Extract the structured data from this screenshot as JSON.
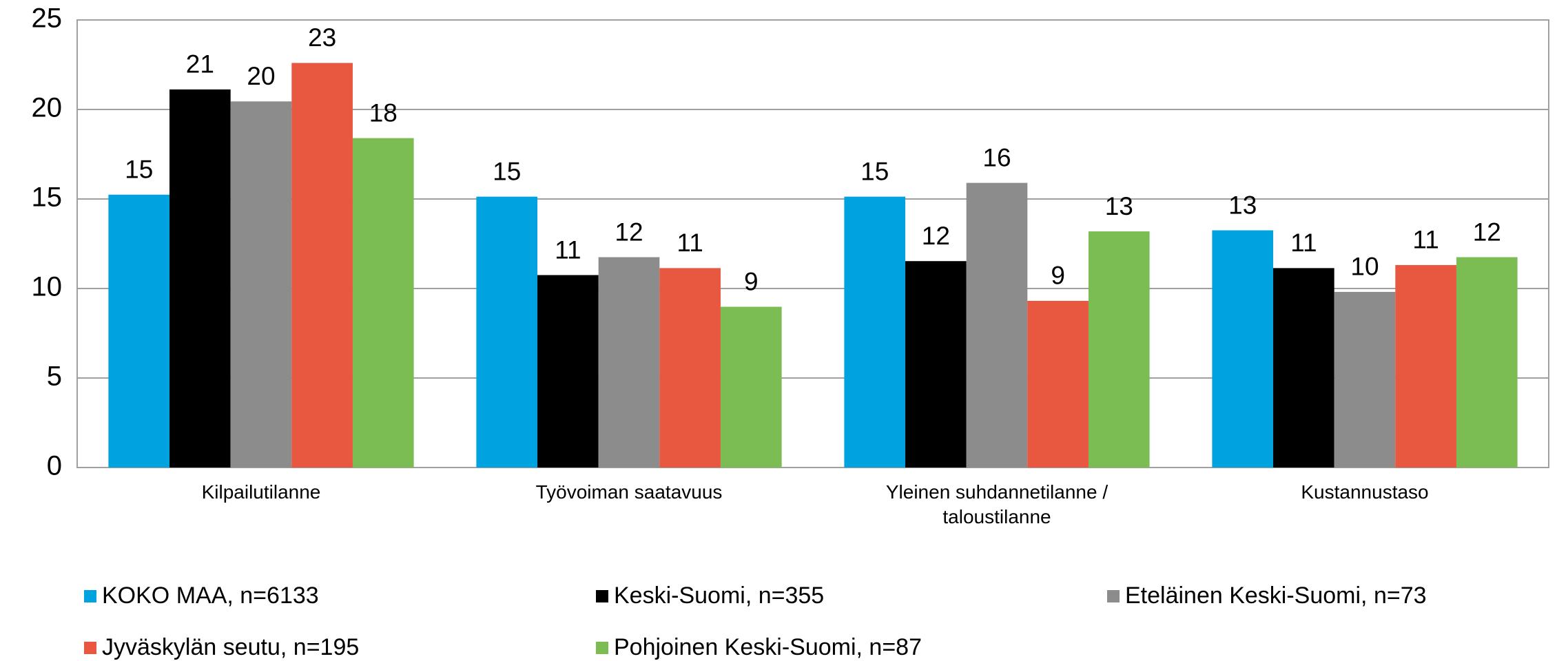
{
  "chart_data": {
    "type": "bar",
    "categories": [
      "Kilpailutilanne",
      "Työvoiman saatavuus",
      "Yleinen suhdannetilanne / taloustilanne",
      "Kustannustaso"
    ],
    "series": [
      {
        "name": "KOKO MAA, n=6133",
        "color": "#00a3e0",
        "values": [
          15.24,
          15.13,
          15.13,
          13.25
        ],
        "value_labels": [
          "15",
          "15",
          "15",
          "13"
        ]
      },
      {
        "name": "Keski-Suomi, n=355",
        "color": "#000000",
        "values": [
          21.12,
          10.75,
          11.53,
          11.14
        ],
        "value_labels": [
          "21",
          "11",
          "12",
          "11"
        ]
      },
      {
        "name": "Eteläinen Keski-Suomi, n=73",
        "color": "#8c8c8c",
        "values": [
          20.45,
          11.75,
          15.9,
          9.81
        ],
        "value_labels": [
          "20",
          "12",
          "16",
          "10"
        ]
      },
      {
        "name": "Jyväskylän seutu, n=195",
        "color": "#e8573f",
        "values": [
          22.6,
          11.14,
          9.31,
          11.31
        ],
        "value_labels": [
          "23",
          "11",
          "9",
          "11"
        ]
      },
      {
        "name": "Pohjoinen Keski-Suomi, n=87",
        "color": "#7bbd52",
        "values": [
          18.4,
          8.98,
          13.19,
          11.75
        ],
        "value_labels": [
          "18",
          "9",
          "13",
          "12"
        ]
      }
    ],
    "ylim": [
      0,
      25
    ],
    "yticks": [
      0,
      5,
      10,
      15,
      20,
      25
    ],
    "grid": true,
    "legend": "bottom"
  }
}
